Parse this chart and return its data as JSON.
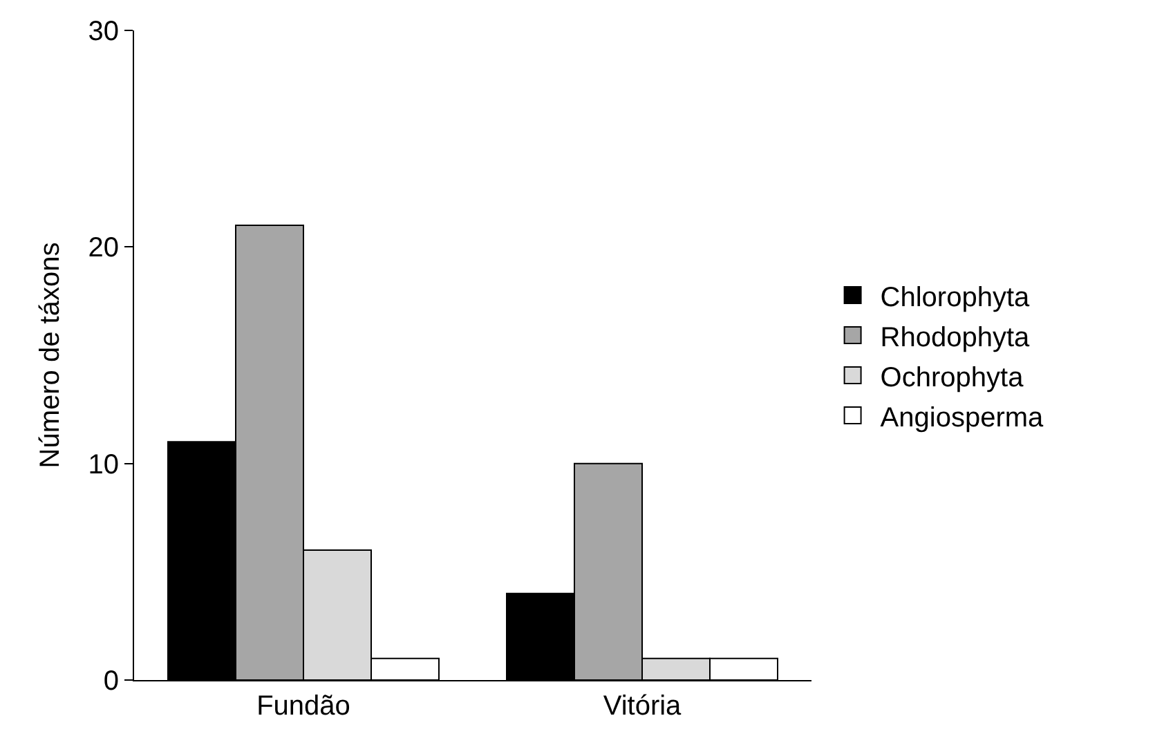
{
  "chart_data": {
    "type": "bar",
    "ylabel": "Número de táxons",
    "categories": [
      "Fundão",
      "Vitória"
    ],
    "series": [
      {
        "name": "Chlorophyta",
        "color": "#000000",
        "values": [
          11,
          4
        ]
      },
      {
        "name": "Rhodophyta",
        "color": "#a6a6a6",
        "values": [
          21,
          10
        ]
      },
      {
        "name": "Ochrophyta",
        "color": "#d9d9d9",
        "values": [
          6,
          1
        ]
      },
      {
        "name": "Angiosperma",
        "color": "#ffffff",
        "values": [
          1,
          1
        ]
      }
    ],
    "ylim": [
      0,
      30
    ],
    "yticks": [
      0,
      10,
      20,
      30
    ],
    "legend": "right"
  }
}
